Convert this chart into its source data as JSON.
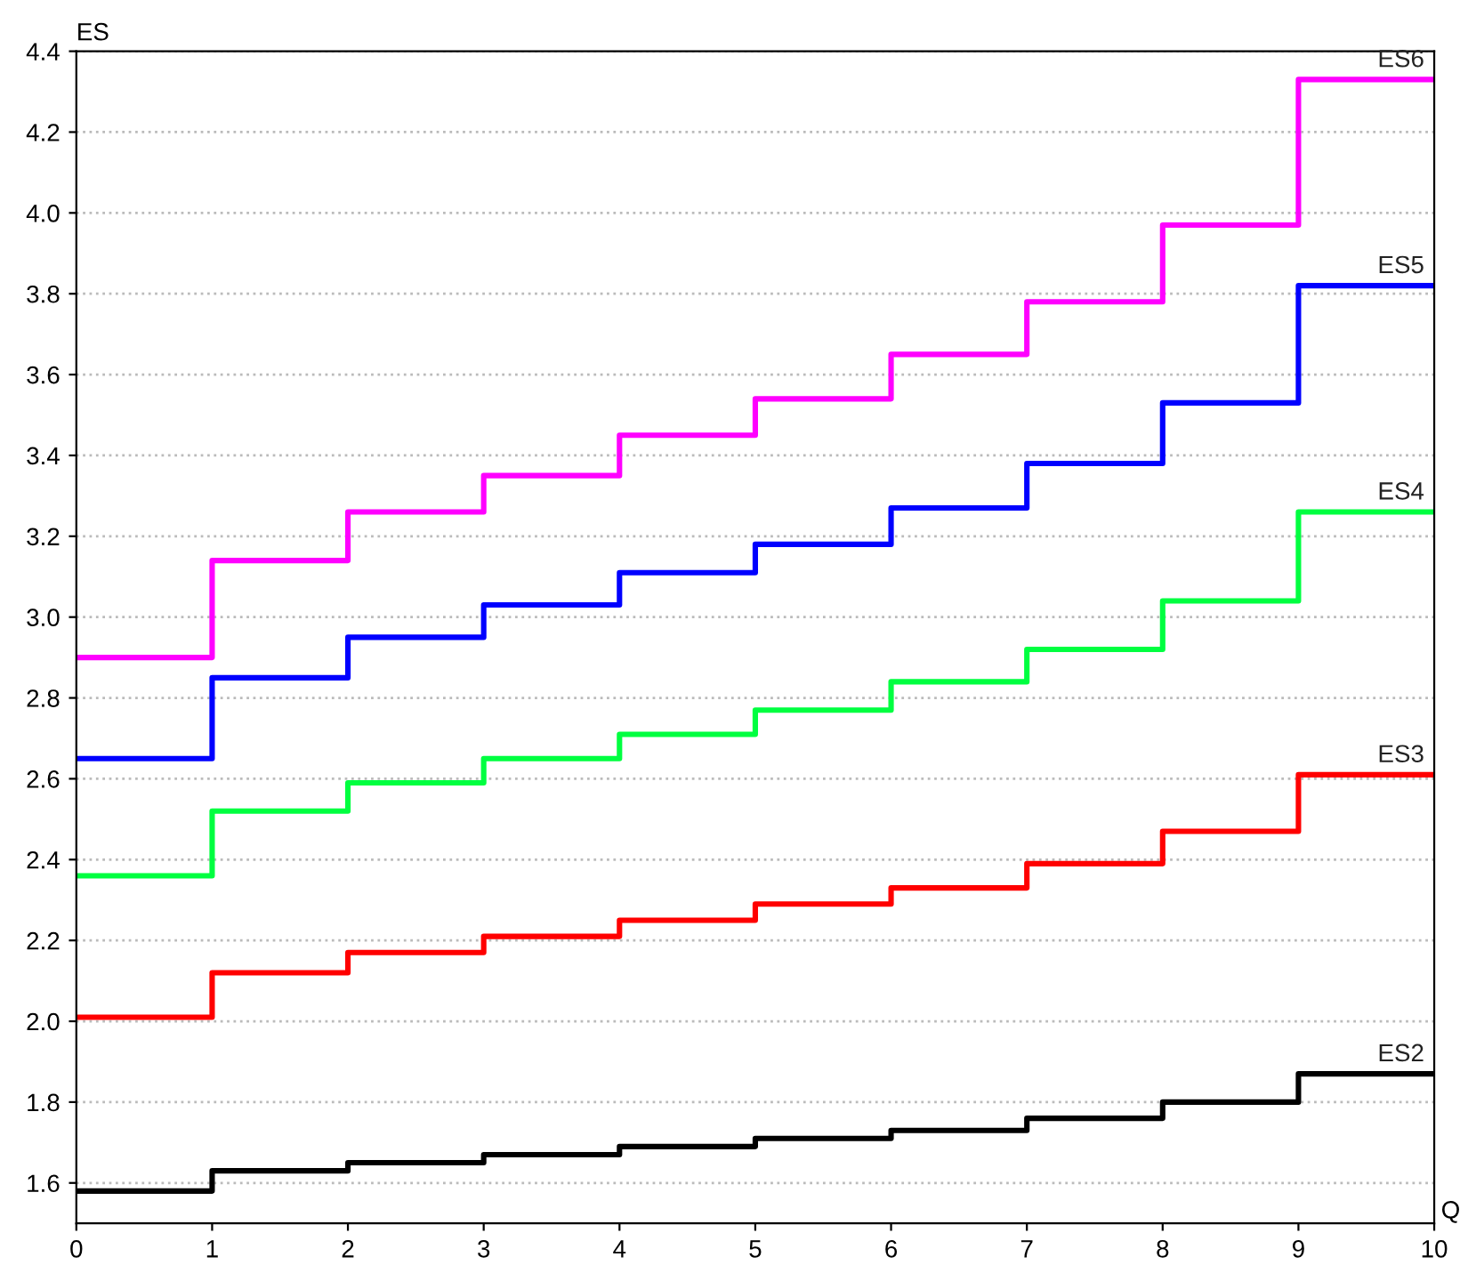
{
  "chart_data": {
    "type": "step",
    "xlabel": "Q",
    "ylabel": "ES",
    "x": [
      0,
      1,
      2,
      3,
      4,
      5,
      6,
      7,
      8,
      9,
      10
    ],
    "series": [
      {
        "name": "ES6",
        "color": "#ff00ff",
        "values": [
          2.9,
          3.14,
          3.26,
          3.35,
          3.45,
          3.54,
          3.65,
          3.78,
          3.97,
          4.33,
          4.33
        ]
      },
      {
        "name": "ES5",
        "color": "#0000ff",
        "values": [
          2.65,
          2.85,
          2.95,
          3.03,
          3.11,
          3.18,
          3.27,
          3.38,
          3.53,
          3.82,
          3.82
        ]
      },
      {
        "name": "ES4",
        "color": "#00ff40",
        "values": [
          2.36,
          2.52,
          2.59,
          2.65,
          2.71,
          2.77,
          2.84,
          2.92,
          3.04,
          3.26,
          3.26
        ]
      },
      {
        "name": "ES3",
        "color": "#ff0000",
        "values": [
          2.01,
          2.12,
          2.17,
          2.21,
          2.25,
          2.29,
          2.33,
          2.39,
          2.47,
          2.61,
          2.61
        ]
      },
      {
        "name": "ES2",
        "color": "#000000",
        "values": [
          1.58,
          1.63,
          1.65,
          1.67,
          1.69,
          1.71,
          1.73,
          1.76,
          1.8,
          1.87,
          1.87
        ]
      }
    ],
    "xlim": [
      0,
      10
    ],
    "ylim": [
      1.5,
      4.4
    ],
    "xticks": [
      0,
      1,
      2,
      3,
      4,
      5,
      6,
      7,
      8,
      9,
      10
    ],
    "yticks": [
      1.6,
      1.8,
      {
        "value": 2,
        "label": "2.0"
      },
      2.2,
      2.4,
      2.6,
      2.8,
      {
        "value": 3,
        "label": "3.0"
      },
      3.2,
      3.4,
      3.6,
      3.8,
      {
        "value": 4,
        "label": "4.0"
      },
      4.2,
      4.4
    ],
    "grid": "y",
    "legend": false,
    "marker": "none",
    "line_style": "solid"
  }
}
